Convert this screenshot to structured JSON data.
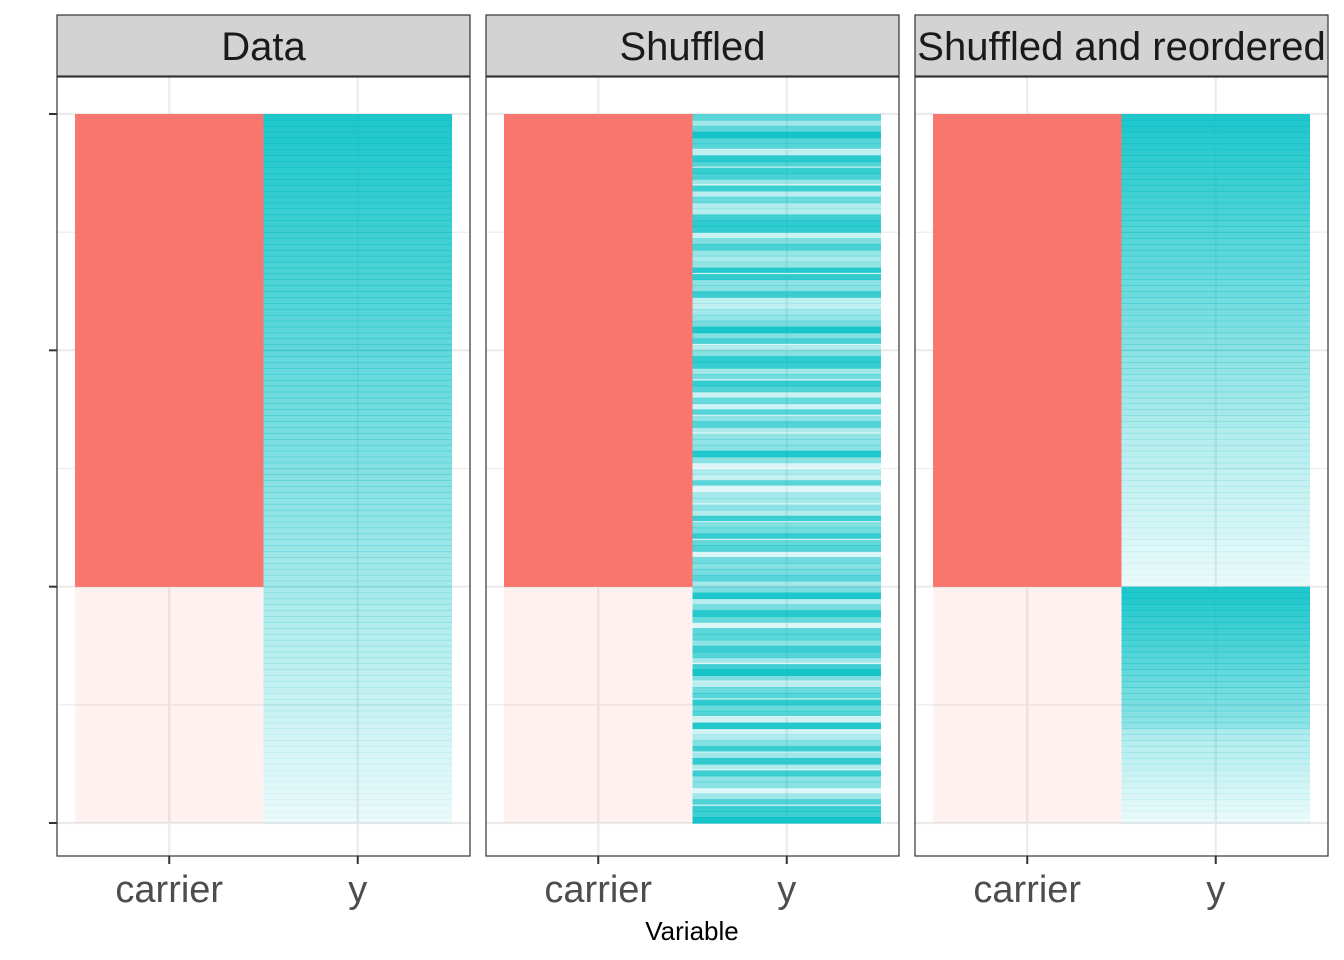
{
  "chart_data": {
    "type": "heatmap",
    "xlabel": "Variable",
    "ylabel": "",
    "categories": [
      "carrier",
      "y"
    ],
    "carrier_split_fraction": 0.667,
    "colors": {
      "carrier": "#F8766D",
      "y": "#00BFC4",
      "strip_bg": "#D3D3D3",
      "grid": "#EBEBEB",
      "border": "#333333"
    },
    "panels": [
      {
        "title": "Data",
        "y_pattern": "gradient"
      },
      {
        "title": "Shuffled",
        "y_pattern": "shuffled"
      },
      {
        "title": "Shuffled and reordered",
        "y_pattern": "reordered"
      }
    ]
  }
}
